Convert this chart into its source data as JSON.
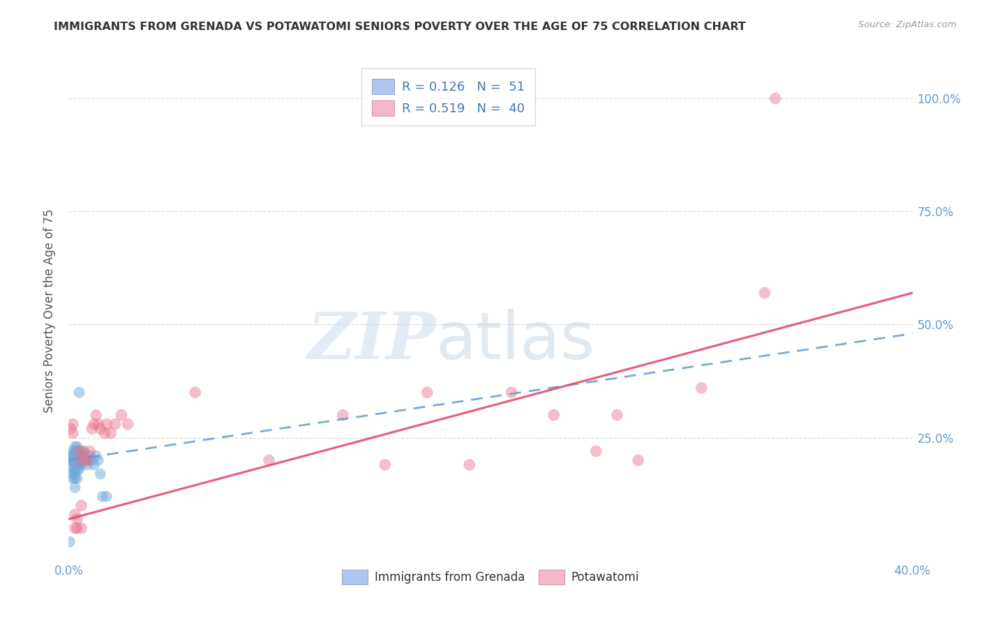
{
  "title": "IMMIGRANTS FROM GRENADA VS POTAWATOMI SENIORS POVERTY OVER THE AGE OF 75 CORRELATION CHART",
  "source": "Source: ZipAtlas.com",
  "ylabel": "Seniors Poverty Over the Age of 75",
  "xlim": [
    0.0,
    0.4
  ],
  "ylim": [
    -0.02,
    1.08
  ],
  "yticks": [
    0.0,
    0.25,
    0.5,
    0.75,
    1.0
  ],
  "ytick_labels_right": [
    "",
    "25.0%",
    "50.0%",
    "75.0%",
    "100.0%"
  ],
  "xticks": [
    0.0,
    0.05,
    0.1,
    0.15,
    0.2,
    0.25,
    0.3,
    0.35,
    0.4
  ],
  "xtick_labels": [
    "0.0%",
    "",
    "",
    "",
    "",
    "",
    "",
    "",
    "40.0%"
  ],
  "legend_entries": [
    {
      "label": "R = 0.126   N =  51",
      "color": "#aec6f0"
    },
    {
      "label": "R = 0.519   N =  40",
      "color": "#f4b8c8"
    }
  ],
  "blue_scatter_x": [
    0.0005,
    0.001,
    0.001,
    0.001,
    0.0015,
    0.002,
    0.002,
    0.002,
    0.002,
    0.002,
    0.0025,
    0.003,
    0.003,
    0.003,
    0.003,
    0.003,
    0.003,
    0.003,
    0.003,
    0.003,
    0.003,
    0.004,
    0.004,
    0.004,
    0.004,
    0.004,
    0.004,
    0.004,
    0.005,
    0.005,
    0.005,
    0.005,
    0.005,
    0.005,
    0.006,
    0.006,
    0.006,
    0.007,
    0.007,
    0.008,
    0.008,
    0.009,
    0.009,
    0.01,
    0.011,
    0.012,
    0.013,
    0.014,
    0.015,
    0.016,
    0.018
  ],
  "blue_scatter_y": [
    0.02,
    0.17,
    0.2,
    0.21,
    0.2,
    0.16,
    0.18,
    0.2,
    0.21,
    0.22,
    0.19,
    0.14,
    0.16,
    0.17,
    0.18,
    0.19,
    0.2,
    0.2,
    0.21,
    0.22,
    0.23,
    0.16,
    0.18,
    0.19,
    0.2,
    0.21,
    0.22,
    0.23,
    0.18,
    0.19,
    0.2,
    0.21,
    0.22,
    0.35,
    0.19,
    0.2,
    0.21,
    0.2,
    0.22,
    0.2,
    0.21,
    0.19,
    0.2,
    0.21,
    0.2,
    0.19,
    0.21,
    0.2,
    0.17,
    0.12,
    0.12
  ],
  "pink_scatter_x": [
    0.001,
    0.002,
    0.002,
    0.003,
    0.003,
    0.004,
    0.004,
    0.005,
    0.005,
    0.006,
    0.006,
    0.007,
    0.008,
    0.009,
    0.01,
    0.011,
    0.012,
    0.013,
    0.014,
    0.015,
    0.017,
    0.018,
    0.02,
    0.022,
    0.025,
    0.028,
    0.06,
    0.095,
    0.13,
    0.15,
    0.17,
    0.19,
    0.21,
    0.23,
    0.25,
    0.26,
    0.27,
    0.3,
    0.33,
    0.335
  ],
  "pink_scatter_y": [
    0.27,
    0.26,
    0.28,
    0.05,
    0.08,
    0.05,
    0.07,
    0.2,
    0.22,
    0.05,
    0.1,
    0.22,
    0.2,
    0.2,
    0.22,
    0.27,
    0.28,
    0.3,
    0.28,
    0.27,
    0.26,
    0.28,
    0.26,
    0.28,
    0.3,
    0.28,
    0.35,
    0.2,
    0.3,
    0.19,
    0.35,
    0.19,
    0.35,
    0.3,
    0.22,
    0.3,
    0.2,
    0.36,
    0.57,
    1.0
  ],
  "blue_line_x": [
    0.0,
    0.4
  ],
  "blue_line_y": [
    0.2,
    0.48
  ],
  "pink_line_x": [
    0.0,
    0.4
  ],
  "pink_line_y": [
    0.07,
    0.57
  ],
  "watermark_zip": "ZIP",
  "watermark_atlas": "atlas",
  "blue_color": "#6fa8dc",
  "pink_color": "#e8728a",
  "blue_line_color": "#6699cc",
  "pink_line_color": "#e05070",
  "background_color": "#ffffff",
  "grid_color": "#dddddd",
  "title_color": "#333333",
  "axis_label_color": "#555555",
  "right_tick_color": "#6699cc",
  "bottom_tick_color": "#6699cc"
}
